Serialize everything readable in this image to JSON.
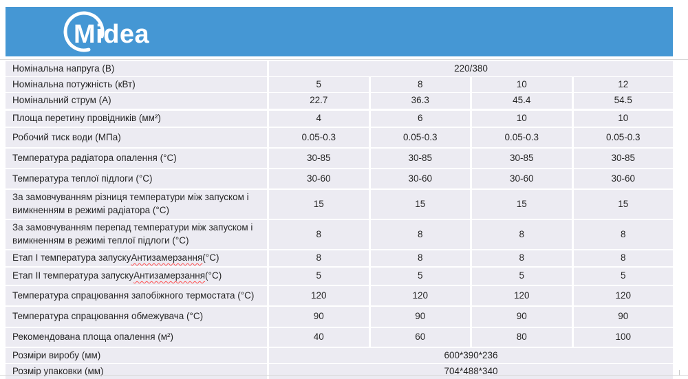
{
  "header": {
    "brand": "Midea",
    "banner_bg": "#4597d4"
  },
  "colors": {
    "row_bg": "#ecebf2",
    "text": "#262626",
    "spellcheck_underline": "#ff5050"
  },
  "table": {
    "rows": [
      {
        "label": "Номінальна напруга (В)",
        "span": true,
        "values": [
          "220/380"
        ]
      },
      {
        "label": "Номінальна потужність (кВт)",
        "values": [
          "5",
          "8",
          "10",
          "12"
        ]
      },
      {
        "label": "Номінальний струм (А)",
        "values": [
          "22.7",
          "36.3",
          "45.4",
          "54.5"
        ]
      },
      {
        "label": "Площа перетину провідників (мм²)",
        "values": [
          "4",
          "6",
          "10",
          "10"
        ]
      },
      {
        "label": "Робочий тиск води (МПа)",
        "values": [
          "0.05-0.3",
          "0.05-0.3",
          "0.05-0.3",
          "0.05-0.3"
        ]
      },
      {
        "label": "Температура радіатора опалення (°С)",
        "values": [
          "30-85",
          "30-85",
          "30-85",
          "30-85"
        ]
      },
      {
        "label": "Температура теплої підлоги (°С)",
        "values": [
          "30-60",
          "30-60",
          "30-60",
          "30-60"
        ]
      },
      {
        "label": "За замовчуванням різниця температури між запуском і вимкненням в режимі радіатора (°С)",
        "values": [
          "15",
          "15",
          "15",
          "15"
        ]
      },
      {
        "label": "За замовчуванням перепад температури між запуском і вимкненням в режимі теплої підлоги (°С)",
        "values": [
          "8",
          "8",
          "8",
          "8"
        ]
      },
      {
        "label": "Етап I температура запуску Антизамерзання (°С)",
        "misspelled": "Антизамерзання",
        "values": [
          "8",
          "8",
          "8",
          "8"
        ]
      },
      {
        "label": "Етап II температура запуску Антизамерзання (°С)",
        "misspelled": "Антизамерзання",
        "values": [
          "5",
          "5",
          "5",
          "5"
        ]
      },
      {
        "label": "Температура спрацювання запобіжного термостата (°С)",
        "values": [
          "120",
          "120",
          "120",
          "120"
        ]
      },
      {
        "label": "Температура спрацювання обмежувача (°С)",
        "values": [
          "90",
          "90",
          "90",
          "90"
        ]
      },
      {
        "label": "Рекомендована площа опалення (м²)",
        "values": [
          "40",
          "60",
          "80",
          "100"
        ]
      },
      {
        "label": "Розміри виробу (мм)",
        "span": true,
        "values": [
          "600*390*236"
        ]
      },
      {
        "label": "Розмір упаковки (мм)",
        "span": true,
        "values": [
          "704*488*340"
        ]
      },
      {
        "label": "",
        "span": true,
        "values": [
          ""
        ]
      }
    ]
  }
}
